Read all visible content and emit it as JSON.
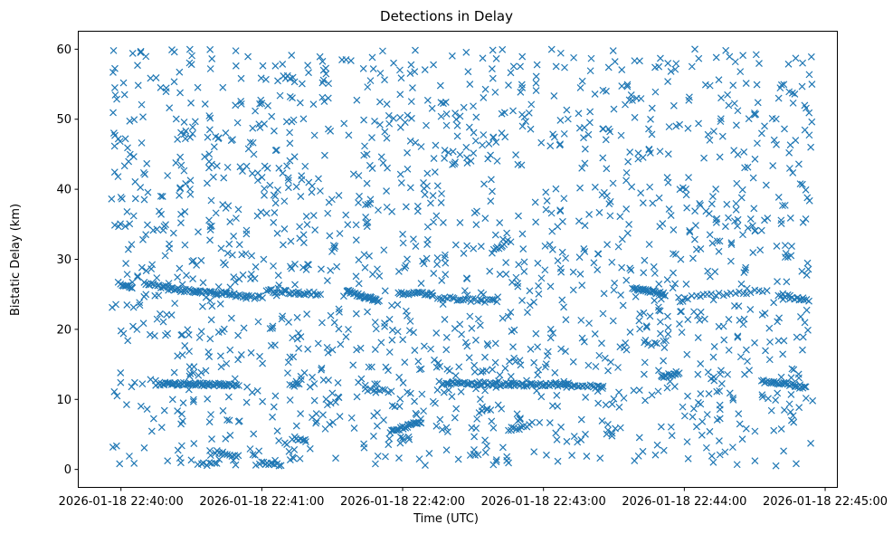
{
  "chart_data": {
    "type": "scatter",
    "title": "Detections in Delay",
    "xlabel": "Time (UTC)",
    "ylabel": "Bistatic Delay (km)",
    "marker": "x",
    "series_color": "#1f77b4",
    "x_unit": "seconds since 2026-01-18 22:40:00",
    "xlim": [
      -18,
      305
    ],
    "ylim": [
      -2.5,
      62.5
    ],
    "xticks": [
      {
        "value": 0,
        "label": "2026-01-18 22:40:00"
      },
      {
        "value": 60,
        "label": "2026-01-18 22:41:00"
      },
      {
        "value": 120,
        "label": "2026-01-18 22:42:00"
      },
      {
        "value": 180,
        "label": "2026-01-18 22:43:00"
      },
      {
        "value": 240,
        "label": "2026-01-18 22:44:00"
      },
      {
        "value": 300,
        "label": "2026-01-18 22:45:00"
      }
    ],
    "yticks": [
      {
        "value": 0,
        "label": "0"
      },
      {
        "value": 10,
        "label": "10"
      },
      {
        "value": 20,
        "label": "20"
      },
      {
        "value": 30,
        "label": "30"
      },
      {
        "value": 40,
        "label": "40"
      },
      {
        "value": 50,
        "label": "50"
      },
      {
        "value": 60,
        "label": "60"
      }
    ],
    "x_range": [
      -4,
      295
    ],
    "y_range": [
      0.5,
      60
    ],
    "n_scatter": 1650,
    "seed": 20260118,
    "tracks": [
      {
        "x_start": -1,
        "x_end": 5,
        "y_start": 26.5,
        "y_end": 26.0,
        "n": 10
      },
      {
        "x_start": 10,
        "x_end": 20,
        "y_start": 26.5,
        "y_end": 26.0,
        "n": 14
      },
      {
        "x_start": 20,
        "x_end": 45,
        "y_start": 25.8,
        "y_end": 25.0,
        "n": 40
      },
      {
        "x_start": 45,
        "x_end": 60,
        "y_start": 25.0,
        "y_end": 24.5,
        "n": 20
      },
      {
        "x_start": 62,
        "x_end": 85,
        "y_start": 25.5,
        "y_end": 25.0,
        "n": 26
      },
      {
        "x_start": 96,
        "x_end": 110,
        "y_start": 25.5,
        "y_end": 24.0,
        "n": 30
      },
      {
        "x_start": 118,
        "x_end": 133,
        "y_start": 25.2,
        "y_end": 25.0,
        "n": 22
      },
      {
        "x_start": 135,
        "x_end": 160,
        "y_start": 24.5,
        "y_end": 24.0,
        "n": 26
      },
      {
        "x_start": 158,
        "x_end": 165,
        "y_start": 31.0,
        "y_end": 32.5,
        "n": 10
      },
      {
        "x_start": 218,
        "x_end": 232,
        "y_start": 26.0,
        "y_end": 25.0,
        "n": 30
      },
      {
        "x_start": 240,
        "x_end": 275,
        "y_start": 24.5,
        "y_end": 25.5,
        "n": 22
      },
      {
        "x_start": 280,
        "x_end": 293,
        "y_start": 25.0,
        "y_end": 24.0,
        "n": 14
      },
      {
        "x_start": 16,
        "x_end": 50,
        "y_start": 12.2,
        "y_end": 12.1,
        "n": 60
      },
      {
        "x_start": 72,
        "x_end": 76,
        "y_start": 12.1,
        "y_end": 12.0,
        "n": 6
      },
      {
        "x_start": 137,
        "x_end": 190,
        "y_start": 12.3,
        "y_end": 12.0,
        "n": 80
      },
      {
        "x_start": 190,
        "x_end": 205,
        "y_start": 11.9,
        "y_end": 11.8,
        "n": 18
      },
      {
        "x_start": 230,
        "x_end": 238,
        "y_start": 13.3,
        "y_end": 13.8,
        "n": 14
      },
      {
        "x_start": 273,
        "x_end": 292,
        "y_start": 12.6,
        "y_end": 11.8,
        "n": 28
      },
      {
        "x_start": 115,
        "x_end": 128,
        "y_start": 5.5,
        "y_end": 6.8,
        "n": 26
      },
      {
        "x_start": 40,
        "x_end": 50,
        "y_start": 2.5,
        "y_end": 1.8,
        "n": 12
      },
      {
        "x_start": 59,
        "x_end": 68,
        "y_start": 1.0,
        "y_end": 0.6,
        "n": 12
      },
      {
        "x_start": 73,
        "x_end": 79,
        "y_start": 4.5,
        "y_end": 4.0,
        "n": 8
      },
      {
        "x_start": 33,
        "x_end": 41,
        "y_start": 0.8,
        "y_end": 0.8,
        "n": 8
      },
      {
        "x_start": 104,
        "x_end": 115,
        "y_start": 11.5,
        "y_end": 11.0,
        "n": 10
      },
      {
        "x_start": 165,
        "x_end": 175,
        "y_start": 5.5,
        "y_end": 6.5,
        "n": 10
      }
    ]
  }
}
